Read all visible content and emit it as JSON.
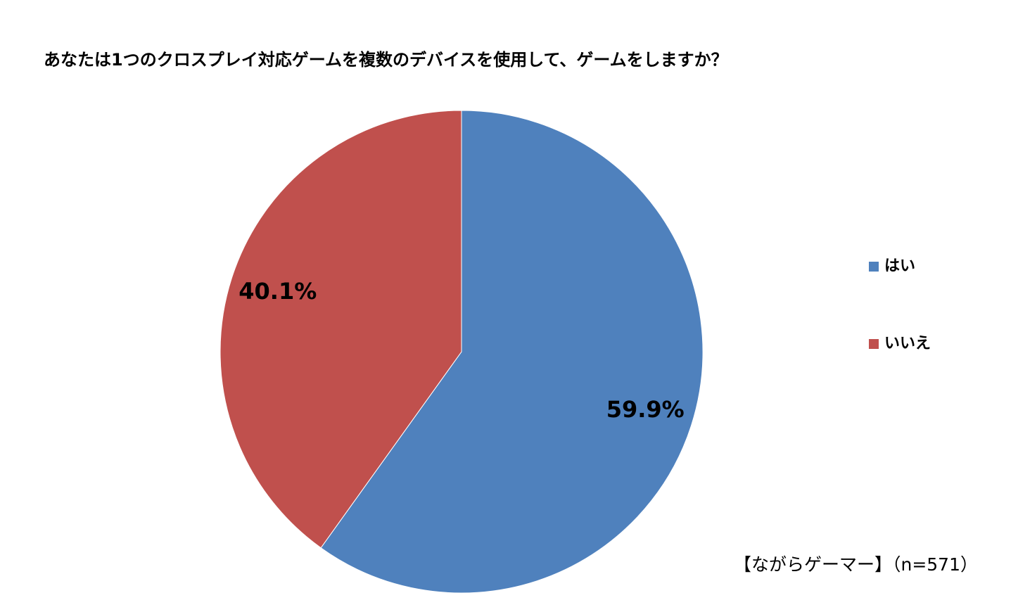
{
  "chart_data": {
    "type": "pie",
    "title": "あなたは1つのクロスプレイ対応ゲームを複数のデバイスを使用して、ゲームをしますか？",
    "categories": [
      "はい",
      "いいえ"
    ],
    "values": [
      59.9,
      40.1
    ],
    "value_labels": [
      "59.9%",
      "40.1%"
    ],
    "colors": [
      "#4f81bd",
      "#c0504d"
    ],
    "legend": "right",
    "annotation": "【ながらゲーマー】（n=571）"
  }
}
